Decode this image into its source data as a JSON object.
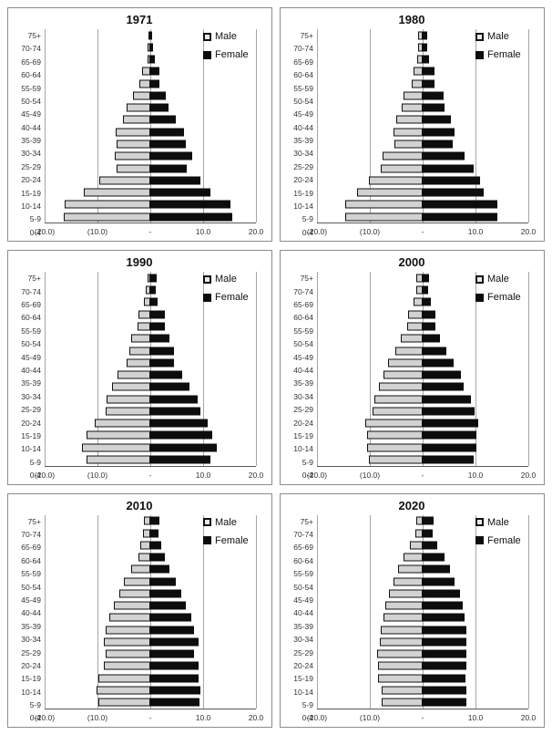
{
  "colors": {
    "male_fill": "#d2d2d2",
    "male_border": "#101010",
    "female_fill": "#0d0d0d",
    "gridline": "#a6a6a6",
    "axis_line": "#595959",
    "panel_border": "#8c8c8c",
    "text": "#333333"
  },
  "legend": {
    "male_label": "Male",
    "female_label": "Female"
  },
  "age_groups": [
    "75+",
    "70-74",
    "65-69",
    "60-64",
    "55-59",
    "50-54",
    "45-49",
    "40-44",
    "35-39",
    "30-34",
    "25-29",
    "20-24",
    "15-19",
    "10-14",
    "5-9",
    "0-4"
  ],
  "x_tick_labels": [
    "(20.0)",
    "(10.0)",
    "-",
    "10.0",
    "20.0"
  ],
  "x_ticks": [
    -20,
    -10,
    0,
    10,
    20
  ],
  "chart_data": [
    {
      "type": "bar",
      "title": "1971",
      "orientation": "population-pyramid",
      "xlim": [
        -20,
        20
      ],
      "xticklabels": [
        "(20.0)",
        "(10.0)",
        "-",
        "10.0",
        "20.0"
      ],
      "legend_position": "top-right",
      "categories": [
        "75+",
        "70-74",
        "65-69",
        "60-64",
        "55-59",
        "50-54",
        "45-49",
        "40-44",
        "35-39",
        "30-34",
        "25-29",
        "20-24",
        "15-19",
        "10-14",
        "5-9",
        "0-4"
      ],
      "series": [
        {
          "name": "Male",
          "side": "left",
          "values": [
            0.4,
            0.5,
            0.6,
            1.5,
            2.0,
            3.2,
            4.5,
            5.2,
            6.6,
            6.4,
            6.8,
            6.3,
            9.6,
            12.6,
            16.2,
            16.4
          ]
        },
        {
          "name": "Female",
          "side": "right",
          "values": [
            0.3,
            0.6,
            0.8,
            1.8,
            1.8,
            3.0,
            3.5,
            4.9,
            6.3,
            6.8,
            7.9,
            6.9,
            9.4,
            11.4,
            15.2,
            15.6
          ]
        }
      ]
    },
    {
      "type": "bar",
      "title": "1980",
      "orientation": "population-pyramid",
      "xlim": [
        -20,
        20
      ],
      "xticklabels": [
        "(20.0)",
        "(10.0)",
        "-",
        "10.0",
        "20.0"
      ],
      "legend_position": "top-right",
      "categories": [
        "75+",
        "70-74",
        "65-69",
        "60-64",
        "55-59",
        "50-54",
        "45-49",
        "40-44",
        "35-39",
        "30-34",
        "25-29",
        "20-24",
        "15-19",
        "10-14",
        "5-9",
        "0-4"
      ],
      "series": [
        {
          "name": "Male",
          "side": "left",
          "values": [
            0.8,
            0.8,
            1.0,
            1.8,
            2.1,
            3.6,
            4.0,
            5.0,
            5.5,
            5.4,
            7.6,
            8.0,
            10.2,
            12.4,
            14.6,
            14.6
          ]
        },
        {
          "name": "Female",
          "side": "right",
          "values": [
            0.9,
            0.9,
            1.2,
            2.2,
            2.3,
            3.9,
            4.2,
            5.3,
            6.0,
            5.7,
            7.9,
            9.6,
            10.8,
            11.5,
            14.2,
            14.2
          ]
        }
      ]
    },
    {
      "type": "bar",
      "title": "1990",
      "orientation": "population-pyramid",
      "xlim": [
        -20,
        20
      ],
      "xticklabels": [
        "(20.0)",
        "(10.0)",
        "-",
        "10.0",
        "20.0"
      ],
      "legend_position": "top-right",
      "categories": [
        "75+",
        "70-74",
        "65-69",
        "60-64",
        "55-59",
        "50-54",
        "45-49",
        "40-44",
        "35-39",
        "30-34",
        "25-29",
        "20-24",
        "15-19",
        "10-14",
        "5-9",
        "0-4"
      ],
      "series": [
        {
          "name": "Male",
          "side": "left",
          "values": [
            0.6,
            0.8,
            1.2,
            2.2,
            2.4,
            3.6,
            4.0,
            4.4,
            6.2,
            7.2,
            8.2,
            8.5,
            10.6,
            12.1,
            12.9,
            12.1
          ]
        },
        {
          "name": "Female",
          "side": "right",
          "values": [
            1.2,
            1.0,
            1.3,
            2.7,
            2.8,
            3.7,
            4.4,
            4.4,
            6.1,
            7.4,
            9.0,
            9.5,
            10.8,
            11.7,
            12.6,
            11.3
          ]
        }
      ]
    },
    {
      "type": "bar",
      "title": "2000",
      "orientation": "population-pyramid",
      "xlim": [
        -20,
        20
      ],
      "xticklabels": [
        "(20.0)",
        "(10.0)",
        "-",
        "10.0",
        "20.0"
      ],
      "legend_position": "top-right",
      "categories": [
        "75+",
        "70-74",
        "65-69",
        "60-64",
        "55-59",
        "50-54",
        "45-49",
        "40-44",
        "35-39",
        "30-34",
        "25-29",
        "20-24",
        "15-19",
        "10-14",
        "5-9",
        "0-4"
      ],
      "series": [
        {
          "name": "Male",
          "side": "left",
          "values": [
            1.2,
            1.2,
            1.8,
            2.8,
            3.0,
            4.1,
            5.2,
            6.5,
            7.5,
            8.2,
            9.2,
            9.4,
            10.9,
            10.5,
            10.5,
            10.1
          ]
        },
        {
          "name": "Female",
          "side": "right",
          "values": [
            1.2,
            1.0,
            1.6,
            2.4,
            2.4,
            3.3,
            4.4,
            5.9,
            7.2,
            7.8,
            9.2,
            9.8,
            10.5,
            10.1,
            10.1,
            9.7
          ]
        }
      ]
    },
    {
      "type": "bar",
      "title": "2010",
      "orientation": "population-pyramid",
      "xlim": [
        -20,
        20
      ],
      "xticklabels": [
        "(20.0)",
        "(10.0)",
        "-",
        "10.0",
        "20.0"
      ],
      "legend_position": "top-right",
      "categories": [
        "75+",
        "70-74",
        "65-69",
        "60-64",
        "55-59",
        "50-54",
        "45-49",
        "40-44",
        "35-39",
        "30-34",
        "25-29",
        "20-24",
        "15-19",
        "10-14",
        "5-9",
        "0-4"
      ],
      "series": [
        {
          "name": "Male",
          "side": "left",
          "values": [
            1.2,
            1.4,
            1.9,
            2.2,
            3.7,
            5.0,
            5.9,
            6.9,
            7.8,
            8.4,
            8.8,
            8.5,
            8.8,
            9.8,
            10.2,
            9.9
          ]
        },
        {
          "name": "Female",
          "side": "right",
          "values": [
            1.8,
            1.5,
            2.0,
            2.7,
            3.6,
            4.8,
            5.9,
            6.8,
            7.8,
            8.3,
            9.2,
            8.3,
            9.1,
            9.2,
            9.5,
            9.3
          ]
        }
      ]
    },
    {
      "type": "bar",
      "title": "2020",
      "orientation": "population-pyramid",
      "xlim": [
        -20,
        20
      ],
      "xticklabels": [
        "(20.0)",
        "(10.0)",
        "-",
        "10.0",
        "20.0"
      ],
      "legend_position": "top-right",
      "categories": [
        "75+",
        "70-74",
        "65-69",
        "60-64",
        "55-59",
        "50-54",
        "45-49",
        "40-44",
        "35-39",
        "30-34",
        "25-29",
        "20-24",
        "15-19",
        "10-14",
        "5-9",
        "0-4"
      ],
      "series": [
        {
          "name": "Male",
          "side": "left",
          "values": [
            1.2,
            1.4,
            2.4,
            3.6,
            4.6,
            5.5,
            6.4,
            7.1,
            7.4,
            7.9,
            8.1,
            8.6,
            8.4,
            8.5,
            7.8,
            7.8
          ]
        },
        {
          "name": "Female",
          "side": "right",
          "values": [
            2.1,
            1.9,
            2.8,
            4.1,
            5.1,
            6.0,
            7.1,
            7.5,
            7.9,
            8.2,
            8.2,
            8.2,
            8.2,
            8.1,
            8.2,
            8.2
          ]
        }
      ]
    }
  ]
}
